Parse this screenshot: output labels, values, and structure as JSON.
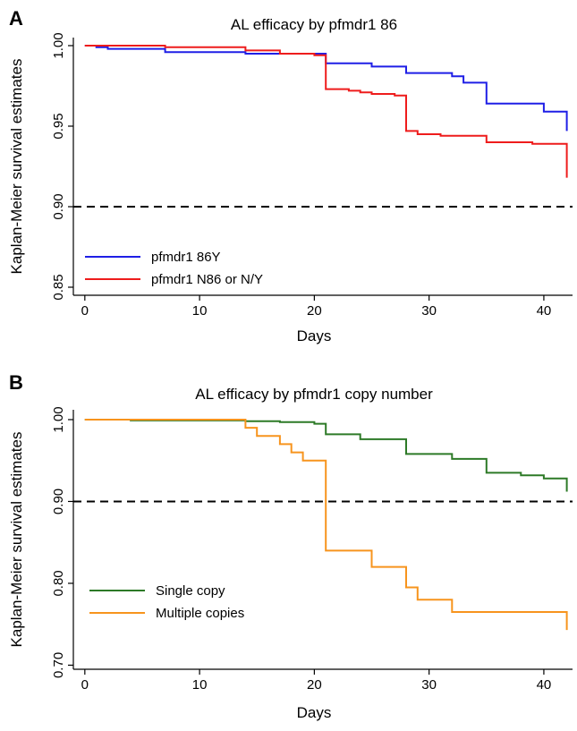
{
  "chart_data": [
    {
      "type": "line",
      "panel_label": "A",
      "title": "AL efficacy by pfmdr1 86",
      "xlabel": "Days",
      "ylabel": "Kaplan-Meier survival estimates",
      "xlim": [
        -1,
        42.5
      ],
      "ylim": [
        0.845,
        1.005
      ],
      "xticks": [
        0,
        10,
        20,
        30,
        40
      ],
      "xtick_labels": [
        "0",
        "10",
        "20",
        "30",
        "40"
      ],
      "yticks": [
        0.85,
        0.9,
        0.95,
        1.0
      ],
      "ytick_labels": [
        "0.85",
        "0.90",
        "0.95",
        "1.00"
      ],
      "grid": false,
      "legend": "bottom-left",
      "reference_line": {
        "y": 0.9,
        "style": "dashed",
        "color": "#000000"
      },
      "series": [
        {
          "name": "pfmdr1 86Y",
          "color": "#1f1fe6",
          "step": true,
          "x": [
            0,
            1,
            2,
            7,
            14,
            21,
            25,
            28,
            32,
            33,
            35,
            40,
            42
          ],
          "y": [
            1.0,
            0.999,
            0.998,
            0.996,
            0.995,
            0.989,
            0.987,
            0.983,
            0.981,
            0.977,
            0.964,
            0.959,
            0.947
          ]
        },
        {
          "name": "pfmdr1 N86 or N/Y",
          "color": "#ee1c1c",
          "step": true,
          "x": [
            0,
            7,
            14,
            17,
            20,
            21,
            23,
            24,
            25,
            27,
            28,
            29,
            31,
            35,
            39,
            42
          ],
          "y": [
            1.0,
            0.999,
            0.997,
            0.995,
            0.994,
            0.973,
            0.972,
            0.971,
            0.97,
            0.969,
            0.947,
            0.945,
            0.944,
            0.94,
            0.939,
            0.918
          ]
        }
      ]
    },
    {
      "type": "line",
      "panel_label": "B",
      "title": "AL efficacy by pfmdr1 copy number",
      "xlabel": "Days",
      "ylabel": "Kaplan-Meier survival estimates",
      "xlim": [
        -1,
        42.5
      ],
      "ylim": [
        0.695,
        1.012
      ],
      "xticks": [
        0,
        10,
        20,
        30,
        40
      ],
      "xtick_labels": [
        "0",
        "10",
        "20",
        "30",
        "40"
      ],
      "yticks": [
        0.7,
        0.8,
        0.9,
        1.0
      ],
      "ytick_labels": [
        "0.70",
        "0.80",
        "0.90",
        "1.00"
      ],
      "grid": false,
      "legend": "bottom-left",
      "reference_line": {
        "y": 0.9,
        "style": "dashed",
        "color": "#000000"
      },
      "series": [
        {
          "name": "Single copy",
          "color": "#2d7a27",
          "step": true,
          "x": [
            0,
            4,
            14,
            17,
            20,
            21,
            24,
            28,
            32,
            35,
            38,
            40,
            42
          ],
          "y": [
            1.0,
            0.999,
            0.998,
            0.997,
            0.995,
            0.982,
            0.976,
            0.958,
            0.952,
            0.935,
            0.932,
            0.928,
            0.912
          ]
        },
        {
          "name": "Multiple copies",
          "color": "#f7941d",
          "step": true,
          "x": [
            0,
            14,
            15,
            17,
            18,
            19,
            21,
            25,
            28,
            29,
            32,
            42
          ],
          "y": [
            1.0,
            0.99,
            0.98,
            0.97,
            0.96,
            0.95,
            0.84,
            0.82,
            0.795,
            0.78,
            0.765,
            0.743
          ]
        }
      ]
    }
  ]
}
